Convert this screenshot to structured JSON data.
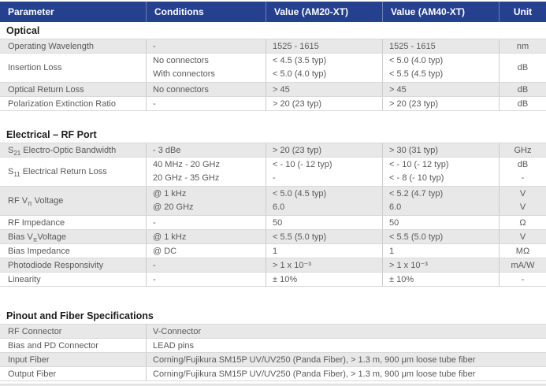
{
  "colors": {
    "header_bg": "#25408f",
    "header_divider": "#6b7cb4",
    "header_text": "#ffffff",
    "row_shaded": "#e8e8e8",
    "row_plain": "#ffffff",
    "border": "#d9d9d9",
    "body_text": "#595959",
    "section_title_text": "#1d1d1d"
  },
  "header": {
    "columns": [
      "Parameter",
      "Conditions",
      "Value (AM20-XT)",
      "Value (AM40-XT)",
      "Unit"
    ]
  },
  "optical": {
    "title": "Optical",
    "rows": {
      "wavelength": {
        "param": "Operating Wavelength",
        "cond": "-",
        "v1": "1525 - 1615",
        "v2": "1525 - 1615",
        "unit": "nm"
      },
      "insertion": {
        "param": "Insertion Loss",
        "cond1": "No connectors",
        "cond2": "With connectors",
        "v1a": "< 4.5 (3.5 typ)",
        "v1b": "< 5.0 (4.0 typ)",
        "v2a": "< 5.0 (4.0 typ)",
        "v2b": "< 5.5 (4.5 typ)",
        "unit": "dB"
      },
      "return_loss": {
        "param": "Optical Return Loss",
        "cond": "No connectors",
        "v1": "> 45",
        "v2": "> 45",
        "unit": "dB"
      },
      "extinction": {
        "param": "Polarization Extinction Ratio",
        "cond": "-",
        "v1": "> 20 (23 typ)",
        "v2": "> 20 (23 typ)",
        "unit": "dB"
      }
    }
  },
  "electrical": {
    "title": "Electrical – RF Port",
    "rows": {
      "s21": {
        "param_pre": "S",
        "param_sub": "21",
        "param_post": " Electro-Optic Bandwidth",
        "cond": "- 3 dBe",
        "v1": "> 20 (23 typ)",
        "v2": "> 30 (31 typ)",
        "unit": "GHz"
      },
      "s11": {
        "param_pre": "S",
        "param_sub": "11",
        "param_post": " Electrical Return Loss",
        "cond1": "40 MHz - 20 GHz",
        "cond2": "20 GHz - 35 GHz",
        "v1a": "< - 10 (- 12 typ)",
        "v1b": "-",
        "v2a": "< - 10 (- 12 typ)",
        "v2b": "< - 8 (- 10 typ)",
        "unit1": "dB",
        "unit2": "-"
      },
      "rf_vpi": {
        "param_pre": "RF V",
        "param_sub": "π",
        "param_post": " Voltage",
        "cond1": "@ 1 kHz",
        "cond2": "@ 20 GHz",
        "v1a": "< 5.0 (4.5 typ)",
        "v1b": "6.0",
        "v2a": "< 5.2 (4.7 typ)",
        "v2b": "6.0",
        "unit1": "V",
        "unit2": "V"
      },
      "rf_impedance": {
        "param": "RF Impedance",
        "cond": "-",
        "v1": "50",
        "v2": "50",
        "unit": "Ω"
      },
      "bias_vpi": {
        "param_pre": "Bias V",
        "param_sub": "π",
        "param_post": "Voltage",
        "cond": "@ 1 kHz",
        "v1": "< 5.5 (5.0 typ)",
        "v2": "< 5.5 (5.0 typ)",
        "unit": "V"
      },
      "bias_impedance": {
        "param": "Bias Impedance",
        "cond": "@ DC",
        "v1": "1",
        "v2": "1",
        "unit": "MΩ"
      },
      "pd_responsivity": {
        "param": "Photodiode Responsivity",
        "cond": "-",
        "v1": "> 1 x 10⁻³",
        "v2": "> 1 x 10⁻³",
        "unit": "mA/W"
      },
      "linearity": {
        "param": "Linearity",
        "cond": "-",
        "v1": "± 10%",
        "v2": "± 10%",
        "unit": "-"
      }
    }
  },
  "pinout": {
    "title": "Pinout and Fiber Specifications",
    "rows": {
      "rf_connector": {
        "param": "RF Connector",
        "value": "V-Connector"
      },
      "bias_pd_connector": {
        "param": "Bias and PD Connector",
        "value": "LEAD pins"
      },
      "input_fiber": {
        "param": "Input Fiber",
        "value": "Corning/Fujikura SM15P UV/UV250 (Panda Fiber), > 1.3 m, 900 μm loose tube fiber"
      },
      "output_fiber": {
        "param": "Output Fiber",
        "value": "Corning/Fujikura SM15P UV/UV250 (Panda Fiber), > 1.3 m, 900 μm loose tube fiber"
      }
    }
  }
}
